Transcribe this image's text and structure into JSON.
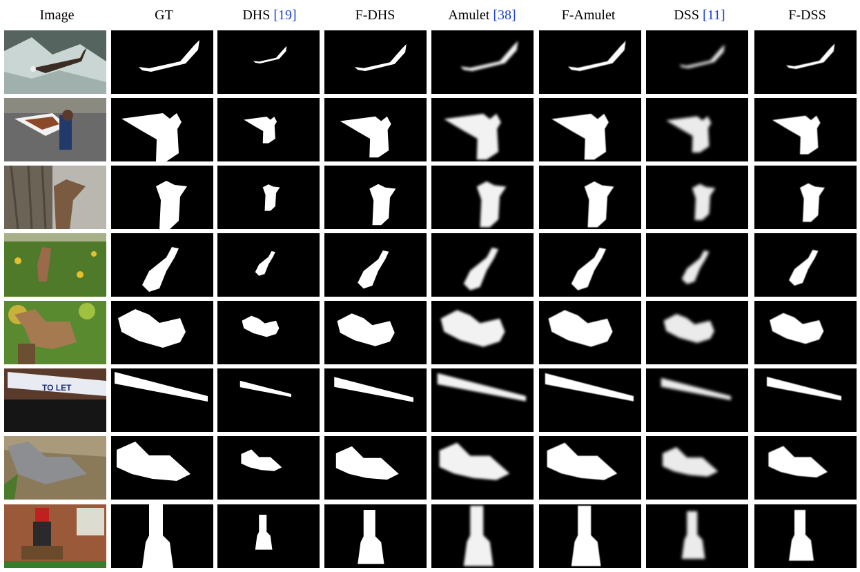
{
  "columns": [
    {
      "label": "Image"
    },
    {
      "label": "GT"
    },
    {
      "label": "DHS",
      "cite": "19"
    },
    {
      "label": "F-DHS"
    },
    {
      "label": "Amulet",
      "cite": "38"
    },
    {
      "label": "F-Amulet"
    },
    {
      "label": "DSS",
      "cite": "11"
    },
    {
      "label": "F-DSS"
    }
  ],
  "rows": [
    {
      "subject": "eagle"
    },
    {
      "subject": "boy-with-tray"
    },
    {
      "subject": "squirrel-on-tree"
    },
    {
      "subject": "deer"
    },
    {
      "subject": "squirrel-on-post"
    },
    {
      "subject": "to-let-sign"
    },
    {
      "subject": "squirrel-on-ground"
    },
    {
      "subject": "emergency-sign-post"
    }
  ],
  "colors": {
    "background": "#ffffff",
    "mask_bg": "#000000",
    "mask_fg": "#ffffff",
    "citation": "#1a3fd6"
  }
}
